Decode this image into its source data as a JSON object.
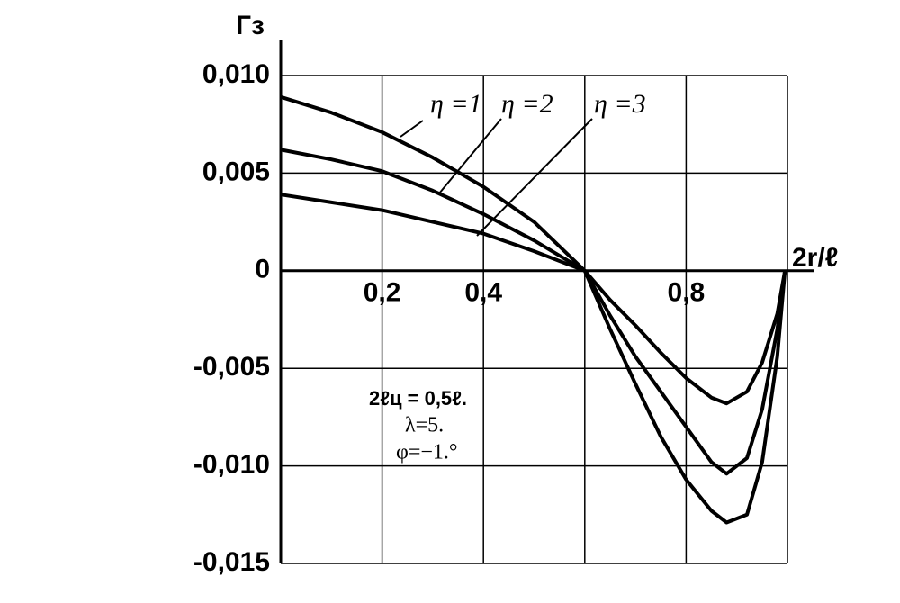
{
  "chart_data": {
    "type": "line",
    "y_label": "Гз",
    "x_label": "2r/ℓ",
    "x": [
      0,
      0.1,
      0.2,
      0.3,
      0.4,
      0.5,
      0.6,
      0.65,
      0.7,
      0.75,
      0.8,
      0.85,
      0.88,
      0.92,
      0.95,
      0.98,
      0.995
    ],
    "series": [
      {
        "name": "η =1",
        "color": "#000000",
        "values": [
          0.0089,
          0.0081,
          0.0071,
          0.0058,
          0.0043,
          0.0025,
          0,
          -0.0015,
          -0.0028,
          -0.0042,
          -0.0055,
          -0.0065,
          -0.0068,
          -0.0062,
          -0.0047,
          -0.0022,
          0
        ]
      },
      {
        "name": "η =2",
        "color": "#000000",
        "values": [
          0.0062,
          0.0057,
          0.0051,
          0.0041,
          0.0029,
          0.00155,
          0,
          -0.0023,
          -0.0044,
          -0.0062,
          -0.008,
          -0.0098,
          -0.0104,
          -0.0096,
          -0.0071,
          -0.003,
          0
        ]
      },
      {
        "name": "η =3",
        "color": "#000000",
        "values": [
          0.0039,
          0.0035,
          0.0031,
          0.0025,
          0.0019,
          0.001,
          0,
          -0.003,
          -0.0058,
          -0.0085,
          -0.0107,
          -0.0123,
          -0.0129,
          -0.0125,
          -0.0098,
          -0.0044,
          0
        ]
      }
    ],
    "xlim": [
      0,
      1.0
    ],
    "ylim": [
      -0.015,
      0.01
    ],
    "xticks": [
      {
        "value": 0.2,
        "label": "0,2"
      },
      {
        "value": 0.4,
        "label": "0,4"
      },
      {
        "value": 0.8,
        "label": "0,8"
      }
    ],
    "xgrid": [
      0.2,
      0.4,
      0.6,
      0.8,
      1.0
    ],
    "yticks": [
      {
        "value": 0.01,
        "label": "0,010"
      },
      {
        "value": 0.005,
        "label": "0,005"
      },
      0,
      {
        "value": -0.005,
        "label": "-0,005"
      },
      {
        "value": -0.01,
        "label": "-0,010"
      },
      {
        "value": -0.015,
        "label": "-0,015"
      }
    ],
    "grid": true,
    "annotations": [
      "2ℓц = 0,5ℓ.",
      "λ=5.",
      "φ=−1.°"
    ]
  }
}
